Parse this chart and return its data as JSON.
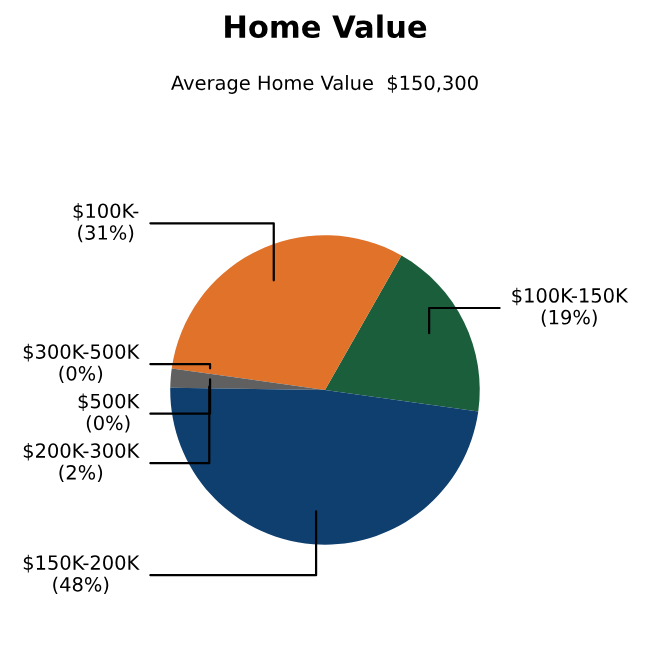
{
  "chart_data": {
    "type": "pie",
    "title": "Home Value",
    "subtitle": "Average Home Value  $150,300",
    "categories": [
      "$100K-150K",
      "$100K-",
      "$300K-500K",
      "$500K",
      "$200K-300K",
      "$150K-200K"
    ],
    "values": [
      19,
      31,
      0,
      0,
      2,
      48
    ],
    "value_labels": [
      "(19%)",
      "(31%)",
      "(0%)",
      "(0%)",
      "(2%)",
      "(48%)"
    ],
    "colors": [
      "#1b5e3b",
      "#e0722a",
      "#8a8a8a",
      "#7a7a7a",
      "#606060",
      "#0f3f6e"
    ]
  }
}
